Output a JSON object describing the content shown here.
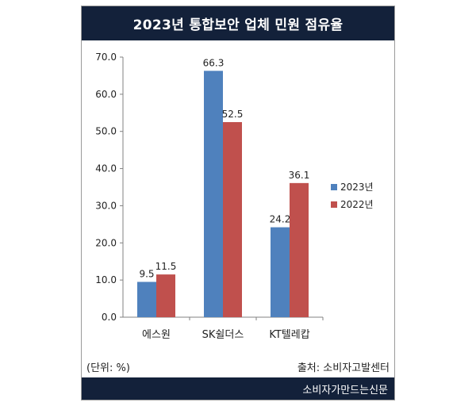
{
  "chart_data": {
    "type": "bar",
    "title": "2023년 통합보안 업체 민원 점유율",
    "categories": [
      "에스원",
      "SK쉴더스",
      "KT텔레캅"
    ],
    "series": [
      {
        "name": "2023년",
        "values": [
          9.5,
          66.3,
          24.2
        ],
        "color": "#4f81bd"
      },
      {
        "name": "2022년",
        "values": [
          11.5,
          52.5,
          36.1
        ],
        "color": "#c0504d"
      }
    ],
    "ylim": [
      0,
      70
    ],
    "yticks": [
      "0.0",
      "10.0",
      "20.0",
      "30.0",
      "40.0",
      "50.0",
      "60.0",
      "70.0"
    ],
    "data_labels": [
      [
        "9.5",
        "66.3",
        "24.2"
      ],
      [
        "11.5",
        "52.5",
        "36.1"
      ]
    ],
    "legend_position": "right",
    "grid": false
  },
  "footer": {
    "unit": "(단위: %)",
    "source": "출처: 소비자고발센터",
    "publisher": "소비자가만드는신문"
  }
}
